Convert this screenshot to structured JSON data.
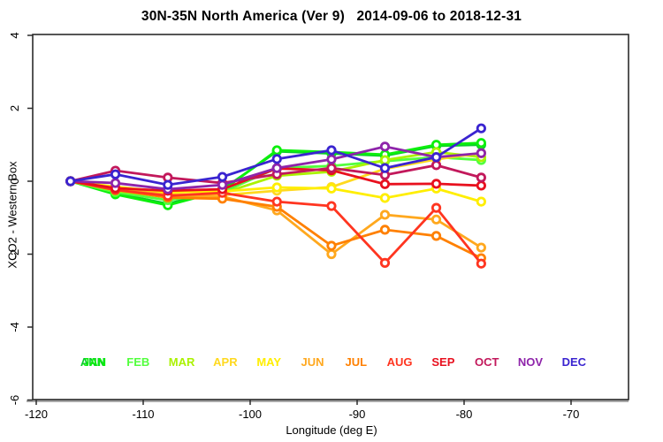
{
  "window": {
    "title": "30N-35N North America (Ver 9)   2014-09-06 to 2018-12-31"
  },
  "chart_data": {
    "type": "line",
    "title": "30N-35N North America (Ver 9)   2014-09-06 to 2018-12-31",
    "xlabel": "Longitude (deg E)",
    "ylabel": "XCO2 - Western Box",
    "xlim": [
      -120.3,
      -64.6
    ],
    "ylim": [
      -6,
      4
    ],
    "xticks": [
      -120,
      -110,
      -100,
      -90,
      -80,
      -70
    ],
    "yticks": [
      4,
      2,
      0,
      -2,
      -4,
      -6
    ],
    "grid": false,
    "legend_position": "bottom-row",
    "axis_color": "#2b2b2b",
    "baseline_color": "#a9a9a9",
    "x": [
      -116.8,
      -112.6,
      -107.7,
      -102.6,
      -97.5,
      -92.4,
      -87.4,
      -82.6,
      -78.4
    ],
    "series": [
      {
        "name": "ANN",
        "color": "#0acc2a",
        "values": [
          0,
          -0.33,
          -0.62,
          -0.23,
          0.82,
          0.76,
          0.7,
          0.97,
          1.0
        ]
      },
      {
        "name": "JAN",
        "color": "#0cf00c",
        "values": [
          0,
          -0.36,
          -0.66,
          -0.26,
          0.85,
          0.8,
          0.73,
          1.0,
          1.05
        ]
      },
      {
        "name": "FEB",
        "color": "#52ff3d",
        "values": [
          0,
          -0.3,
          -0.52,
          -0.3,
          0.36,
          0.42,
          0.55,
          0.66,
          0.58
        ]
      },
      {
        "name": "MAR",
        "color": "#aaf200",
        "values": [
          0,
          -0.26,
          -0.44,
          -0.33,
          0.15,
          0.26,
          0.58,
          0.8,
          0.66
        ]
      },
      {
        "name": "APR",
        "color": "#ffd91f",
        "values": [
          0,
          -0.18,
          -0.36,
          -0.38,
          -0.26,
          -0.16,
          0.34,
          0.6,
          0.77
        ]
      },
      {
        "name": "MAY",
        "color": "#ffee00",
        "values": [
          0,
          -0.15,
          -0.3,
          -0.28,
          -0.17,
          -0.2,
          -0.46,
          -0.2,
          -0.56
        ]
      },
      {
        "name": "JUN",
        "color": "#ffa81e",
        "values": [
          0,
          -0.2,
          -0.38,
          -0.42,
          -0.8,
          -2.0,
          -0.92,
          -1.05,
          -1.82
        ]
      },
      {
        "name": "JUL",
        "color": "#ff8000",
        "values": [
          0,
          -0.23,
          -0.45,
          -0.48,
          -0.7,
          -1.77,
          -1.33,
          -1.5,
          -2.11
        ]
      },
      {
        "name": "AUG",
        "color": "#ff3520",
        "values": [
          0,
          -0.24,
          -0.4,
          -0.32,
          -0.56,
          -0.68,
          -2.24,
          -0.73,
          -2.26
        ]
      },
      {
        "name": "SEP",
        "color": "#e8101e",
        "values": [
          0,
          -0.19,
          -0.26,
          -0.22,
          0.35,
          0.3,
          -0.08,
          -0.07,
          -0.12
        ]
      },
      {
        "name": "OCT",
        "color": "#c2185b",
        "values": [
          0,
          0.29,
          0.1,
          -0.05,
          0.19,
          0.36,
          0.17,
          0.44,
          0.1
        ]
      },
      {
        "name": "NOV",
        "color": "#8e24aa",
        "values": [
          0,
          -0.05,
          -0.22,
          -0.1,
          0.36,
          0.6,
          0.95,
          0.66,
          0.77
        ]
      },
      {
        "name": "DEC",
        "color": "#3a24d0",
        "values": [
          0,
          0.19,
          -0.1,
          0.12,
          0.61,
          0.85,
          0.36,
          0.66,
          1.45
        ]
      }
    ],
    "legend": {
      "items": [
        {
          "label": "ANN",
          "color": "#0acc2a",
          "slot": 0
        },
        {
          "label": "JAN",
          "color": "#0cf00c",
          "slot": 0
        },
        {
          "label": "FEB",
          "color": "#52ff3d",
          "slot": 1
        },
        {
          "label": "MAR",
          "color": "#aaf200",
          "slot": 2
        },
        {
          "label": "APR",
          "color": "#ffd91f",
          "slot": 3
        },
        {
          "label": "MAY",
          "color": "#ffee00",
          "slot": 4
        },
        {
          "label": "JUN",
          "color": "#ffa81e",
          "slot": 5
        },
        {
          "label": "JUL",
          "color": "#ff8000",
          "slot": 6
        },
        {
          "label": "AUG",
          "color": "#ff3520",
          "slot": 7
        },
        {
          "label": "SEP",
          "color": "#e8101e",
          "slot": 8
        },
        {
          "label": "OCT",
          "color": "#c2185b",
          "slot": 9
        },
        {
          "label": "NOV",
          "color": "#8e24aa",
          "slot": 10
        },
        {
          "label": "DEC",
          "color": "#3a24d0",
          "slot": 11
        }
      ]
    }
  }
}
